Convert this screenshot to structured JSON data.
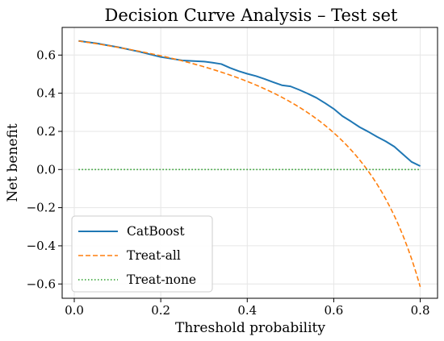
{
  "chart_data": {
    "type": "line",
    "title": "Decision Curve Analysis – Test set",
    "xlabel": "Threshold probability",
    "ylabel": "Net benefit",
    "xlim": [
      -0.028,
      0.84
    ],
    "ylim": [
      -0.675,
      0.745
    ],
    "xticks": [
      0.0,
      0.2,
      0.4,
      0.6,
      0.8
    ],
    "xtick_labels": [
      "0.0",
      "0.2",
      "0.4",
      "0.6",
      "0.8"
    ],
    "yticks": [
      -0.6,
      -0.4,
      -0.2,
      0.0,
      0.2,
      0.4,
      0.6
    ],
    "ytick_labels": [
      "−0.6",
      "−0.4",
      "−0.2",
      "0.0",
      "0.2",
      "0.4",
      "0.6"
    ],
    "grid": true,
    "legend_position": "lower-left",
    "series": [
      {
        "name": "CatBoost",
        "style": "solid",
        "color": "#1f77b4",
        "x": [
          0.01,
          0.05,
          0.1,
          0.15,
          0.2,
          0.25,
          0.3,
          0.32,
          0.34,
          0.36,
          0.38,
          0.4,
          0.42,
          0.44,
          0.46,
          0.48,
          0.5,
          0.52,
          0.54,
          0.56,
          0.58,
          0.6,
          0.62,
          0.64,
          0.66,
          0.68,
          0.7,
          0.72,
          0.74,
          0.76,
          0.78,
          0.8
        ],
        "y": [
          0.674,
          0.662,
          0.642,
          0.618,
          0.59,
          0.572,
          0.566,
          0.56,
          0.553,
          0.533,
          0.516,
          0.502,
          0.49,
          0.475,
          0.458,
          0.442,
          0.436,
          0.418,
          0.398,
          0.376,
          0.348,
          0.318,
          0.28,
          0.252,
          0.222,
          0.198,
          0.172,
          0.148,
          0.12,
          0.08,
          0.04,
          0.018
        ]
      },
      {
        "name": "Treat-all",
        "style": "dashed",
        "color": "#ff7f0e",
        "formula_prevalence": 0.677,
        "x_range": [
          0.01,
          0.8
        ]
      },
      {
        "name": "Treat-none",
        "style": "dotted",
        "color": "#2ca02c",
        "x": [
          0.01,
          0.8
        ],
        "y": [
          0.0,
          0.0
        ]
      }
    ]
  }
}
